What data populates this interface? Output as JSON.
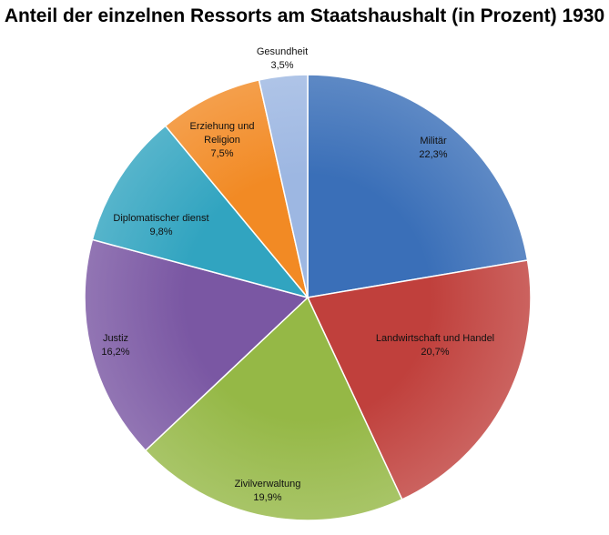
{
  "chart_data": {
    "type": "pie",
    "title": "Anteil der einzelnen Ressorts am Staatshaushalt (in Prozent) 1930",
    "slices": [
      {
        "name": "Militär",
        "value_label": "22,3%",
        "value": 22.3,
        "color": "#3a6fb8",
        "label_lines": [
          "Militär"
        ]
      },
      {
        "name": "Landwirtschaft und Handel",
        "value_label": "20,7%",
        "value": 20.7,
        "color": "#c0403c",
        "label_lines": [
          "Landwirtschaft und Handel"
        ]
      },
      {
        "name": "Zivilverwaltung",
        "value_label": "19,9%",
        "value": 19.9,
        "color": "#95b846",
        "label_lines": [
          "Zivilverwaltung"
        ]
      },
      {
        "name": "Justiz",
        "value_label": "16,2%",
        "value": 16.2,
        "color": "#7a57a3",
        "label_lines": [
          "Justiz"
        ]
      },
      {
        "name": "Diplomatischer dienst",
        "value_label": "9,8%",
        "value": 9.8,
        "color": "#31a4c0",
        "label_lines": [
          "Diplomatischer dienst"
        ]
      },
      {
        "name": "Erziehung und Religion",
        "value_label": "7,5%",
        "value": 7.5,
        "color": "#f28a24",
        "label_lines": [
          "Erziehung und",
          "Religion"
        ]
      },
      {
        "name": "Gesundheit",
        "value_label": "3,5%",
        "value": 3.5,
        "color": "#9db7e2",
        "label_lines": [
          "Gesundheit"
        ]
      }
    ],
    "legend": "none"
  }
}
